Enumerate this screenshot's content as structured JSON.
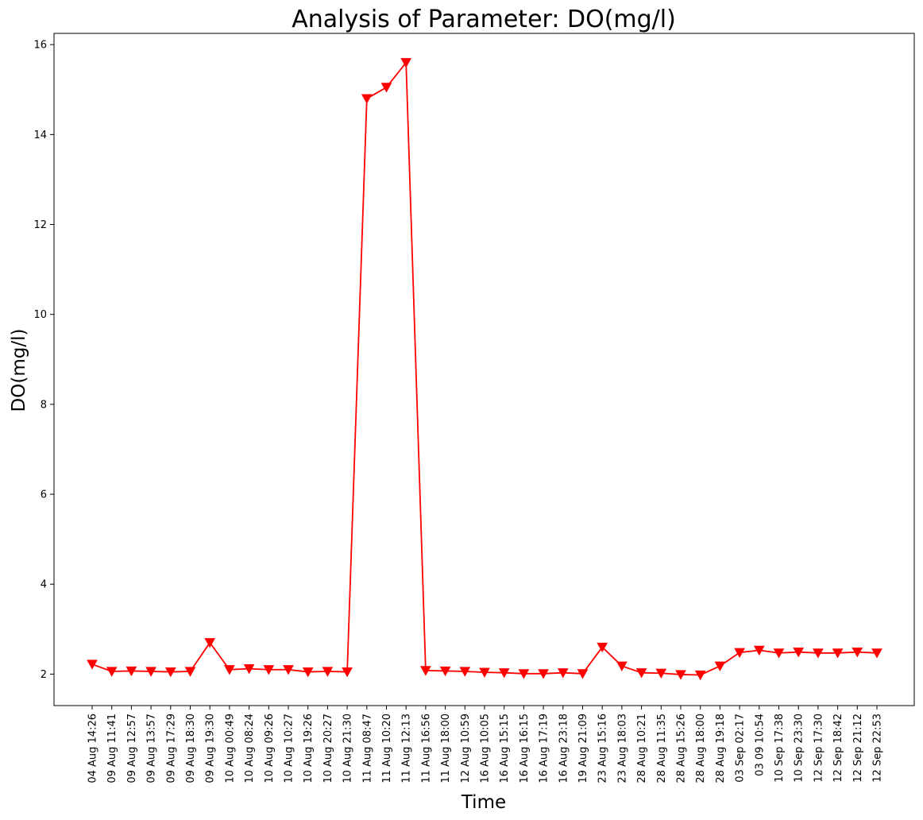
{
  "chart_data": {
    "type": "line",
    "title": "Analysis of Parameter: DO(mg/l)",
    "xlabel": "Time",
    "ylabel": "DO(mg/l)",
    "ylim": [
      1.3,
      16.25
    ],
    "yticks": [
      2,
      4,
      6,
      8,
      10,
      12,
      14,
      16
    ],
    "grid": false,
    "legend": "none",
    "categories": [
      "04 Aug 14:26",
      "09 Aug 11:41",
      "09 Aug 12:57",
      "09 Aug 13:57",
      "09 Aug 17:29",
      "09 Aug 18:30",
      "09 Aug 19:30",
      "10 Aug 00:49",
      "10 Aug 08:24",
      "10 Aug 09:26",
      "10 Aug 10:27",
      "10 Aug 19:26",
      "10 Aug 20:27",
      "10 Aug 21:30",
      "11 Aug 08:47",
      "11 Aug 10:20",
      "11 Aug 12:13",
      "11 Aug 16:56",
      "11 Aug 18:00",
      "12 Aug 10:59",
      "16 Aug 10:05",
      "16 Aug 15:15",
      "16 Aug 16:15",
      "16 Aug 17:19",
      "16 Aug 23:18",
      "19 Aug 21:09",
      "23 Aug 15:16",
      "23 Aug 18:03",
      "28 Aug 10:21",
      "28 Aug 11:35",
      "28 Aug 15:26",
      "28 Aug 18:00",
      "28 Aug 19:18",
      "03 Sep 02:17",
      "03 09 10:54",
      "10 Sep 17:38",
      "10 Sep 23:30",
      "12 Sep 17:30",
      "12 Sep 18:42",
      "12 Sep 21:12",
      "12 Sep 22:53"
    ],
    "series": [
      {
        "values": [
          2.22,
          2.06,
          2.07,
          2.06,
          2.05,
          2.06,
          2.7,
          2.1,
          2.12,
          2.1,
          2.1,
          2.05,
          2.06,
          2.05,
          14.8,
          15.05,
          15.6,
          2.08,
          2.07,
          2.06,
          2.04,
          2.03,
          2.01,
          2.01,
          2.03,
          2.01,
          2.6,
          2.18,
          2.03,
          2.02,
          1.99,
          1.98,
          2.18,
          2.48,
          2.53,
          2.47,
          2.49,
          2.47,
          2.47,
          2.49,
          2.47
        ],
        "color": "#ff0000",
        "marker": "triangle-down"
      }
    ]
  }
}
